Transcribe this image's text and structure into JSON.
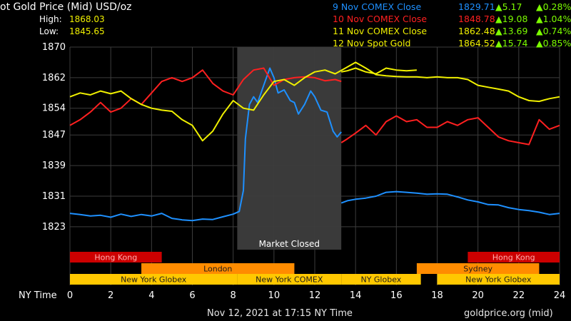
{
  "header": {
    "title": "ot Gold Price (Mid) USD/oz",
    "high_label": "High:",
    "high_value": "1868.03",
    "low_label": "Low:",
    "low_value": "1845.65"
  },
  "legend": [
    {
      "name": "9 Nov COMEX Close",
      "price": "1829.71",
      "change": "▲5.17",
      "pct": "▲0.28%",
      "color": "#1e90ff"
    },
    {
      "name": "10 Nov COMEX Close",
      "price": "1848.78",
      "change": "▲19.08",
      "pct": "▲1.04%",
      "color": "#ff2020"
    },
    {
      "name": "11 Nov COMEX Close",
      "price": "1862.48",
      "change": "▲13.69",
      "pct": "▲0.74%",
      "color": "#f0f000"
    },
    {
      "name": "12 Nov Spot Gold",
      "price": "1864.52",
      "change": "▲15.74",
      "pct": "▲0.85%",
      "color": "#f0f000"
    }
  ],
  "footer": {
    "timestamp": "Nov 12, 2021 at 17:15 NY Time",
    "source": "goldprice.org (mid)"
  },
  "colors": {
    "background": "#000000",
    "grid": "#3c3c3c",
    "closed_region": "#3a3a3a",
    "series_9nov": "#1e90ff",
    "series_10nov": "#ff2020",
    "series_11nov": "#f0f000",
    "series_12nov": "#f0f000",
    "change_up": "#7cfc00",
    "session_red": "#cc0000",
    "session_orange": "#ff8c00",
    "session_yellow": "#ffc800"
  },
  "chart_data": {
    "type": "line",
    "xlabel": "NY Time",
    "xlim": [
      0,
      24
    ],
    "ylim": [
      1817,
      1870
    ],
    "x_ticks": [
      "0",
      "2",
      "4",
      "6",
      "8",
      "10",
      "12",
      "14",
      "16",
      "18",
      "20",
      "22",
      "24"
    ],
    "y_ticks": [
      "1870",
      "1862",
      "1854",
      "1847",
      "1839",
      "1831",
      "1823"
    ],
    "y_tick_values": [
      1870,
      1862,
      1854,
      1847,
      1839,
      1831,
      1823
    ],
    "grid": true,
    "annotation": {
      "text": "Market Closed",
      "x_start": 8.2,
      "x_end": 13.3
    },
    "sessions": [
      {
        "label": "Hong Kong",
        "row": 1,
        "start": 0,
        "end": 4.5,
        "color": "#cc0000"
      },
      {
        "label": "Hong Kong",
        "row": 1,
        "start": 19.5,
        "end": 24,
        "color": "#cc0000"
      },
      {
        "label": "London",
        "row": 2,
        "start": 3.5,
        "end": 11,
        "color": "#ff8c00"
      },
      {
        "label": "Sydney",
        "row": 2,
        "start": 17,
        "end": 23,
        "color": "#ff8c00"
      },
      {
        "label": "New York Globex",
        "row": 3,
        "start": 0,
        "end": 8.2,
        "color": "#ffc800"
      },
      {
        "label": "New York COMEX",
        "row": 3,
        "start": 8.2,
        "end": 13.3,
        "color": "#ffc800"
      },
      {
        "label": "NY Globex",
        "row": 3,
        "start": 13.3,
        "end": 17.2,
        "color": "#ffc800"
      },
      {
        "label": "New York Globex",
        "row": 3,
        "start": 18,
        "end": 24,
        "color": "#ffc800"
      }
    ],
    "series": [
      {
        "name": "9 Nov COMEX Close",
        "color": "#1e90ff",
        "segments": [
          [
            [
              0,
              1826.5
            ],
            [
              0.5,
              1826.2
            ],
            [
              1,
              1825.8
            ],
            [
              1.5,
              1826.0
            ],
            [
              2,
              1825.5
            ],
            [
              2.5,
              1826.3
            ],
            [
              3,
              1825.7
            ],
            [
              3.5,
              1826.2
            ],
            [
              4,
              1825.8
            ],
            [
              4.5,
              1826.5
            ],
            [
              5,
              1825.2
            ],
            [
              5.5,
              1824.8
            ],
            [
              6,
              1824.6
            ],
            [
              6.5,
              1825.0
            ],
            [
              7,
              1824.9
            ],
            [
              7.5,
              1825.6
            ],
            [
              8,
              1826.3
            ],
            [
              8.3,
              1827.0
            ],
            [
              8.5,
              1832.5
            ],
            [
              8.6,
              1846.0
            ],
            [
              8.8,
              1855.0
            ],
            [
              9,
              1857.0
            ],
            [
              9.2,
              1855.5
            ],
            [
              9.5,
              1860.0
            ],
            [
              9.8,
              1864.5
            ],
            [
              10,
              1862.0
            ],
            [
              10.2,
              1858.0
            ],
            [
              10.5,
              1858.8
            ],
            [
              10.8,
              1856.0
            ],
            [
              11,
              1855.5
            ],
            [
              11.2,
              1852.5
            ],
            [
              11.5,
              1855.0
            ],
            [
              11.8,
              1858.5
            ],
            [
              12,
              1857.0
            ],
            [
              12.3,
              1853.5
            ],
            [
              12.6,
              1853.0
            ],
            [
              12.9,
              1848.0
            ],
            [
              13.1,
              1846.5
            ],
            [
              13.3,
              1847.8
            ]
          ],
          [
            [
              13.3,
              1829.2
            ],
            [
              13.6,
              1829.8
            ],
            [
              14,
              1830.2
            ],
            [
              14.5,
              1830.5
            ],
            [
              15,
              1831.0
            ],
            [
              15.5,
              1832.0
            ],
            [
              16,
              1832.2
            ],
            [
              16.5,
              1832.0
            ],
            [
              17,
              1831.8
            ],
            [
              17.5,
              1831.5
            ],
            [
              18,
              1831.6
            ],
            [
              18.5,
              1831.5
            ],
            [
              19,
              1830.8
            ],
            [
              19.5,
              1830.0
            ],
            [
              20,
              1829.5
            ],
            [
              20.5,
              1828.8
            ],
            [
              21,
              1828.7
            ],
            [
              21.5,
              1828.0
            ],
            [
              22,
              1827.5
            ],
            [
              22.5,
              1827.2
            ],
            [
              23,
              1826.8
            ],
            [
              23.5,
              1826.2
            ],
            [
              24,
              1826.5
            ]
          ]
        ]
      },
      {
        "name": "10 Nov COMEX Close",
        "color": "#ff2020",
        "segments": [
          [
            [
              0,
              1849.5
            ],
            [
              0.5,
              1851.0
            ],
            [
              1,
              1853.0
            ],
            [
              1.5,
              1855.5
            ],
            [
              2,
              1853.0
            ],
            [
              2.5,
              1854.0
            ],
            [
              3,
              1856.5
            ],
            [
              3.5,
              1855.0
            ],
            [
              4,
              1858.0
            ],
            [
              4.5,
              1861.0
            ],
            [
              5,
              1862.0
            ],
            [
              5.5,
              1861.0
            ],
            [
              6,
              1862.0
            ],
            [
              6.5,
              1864.0
            ],
            [
              7,
              1860.5
            ],
            [
              7.5,
              1858.5
            ],
            [
              8,
              1857.5
            ],
            [
              8.5,
              1861.5
            ],
            [
              9,
              1864.0
            ],
            [
              9.5,
              1864.5
            ],
            [
              10,
              1860.0
            ],
            [
              10.5,
              1861.5
            ],
            [
              11,
              1862.0
            ],
            [
              11.5,
              1862.2
            ],
            [
              12,
              1862.0
            ],
            [
              12.5,
              1861.2
            ],
            [
              13,
              1861.5
            ],
            [
              13.3,
              1861.0
            ]
          ],
          [
            [
              13.3,
              1845.0
            ],
            [
              13.6,
              1846.0
            ],
            [
              14,
              1847.5
            ],
            [
              14.5,
              1849.5
            ],
            [
              15,
              1847.0
            ],
            [
              15.5,
              1850.5
            ],
            [
              16,
              1852.0
            ],
            [
              16.5,
              1850.5
            ],
            [
              17,
              1851.0
            ],
            [
              17.5,
              1849.0
            ],
            [
              18,
              1849.0
            ],
            [
              18.5,
              1850.5
            ],
            [
              19,
              1849.5
            ],
            [
              19.5,
              1851.0
            ],
            [
              20,
              1851.5
            ],
            [
              20.5,
              1849.0
            ],
            [
              21,
              1846.5
            ],
            [
              21.5,
              1845.5
            ],
            [
              22,
              1845.0
            ],
            [
              22.5,
              1844.5
            ],
            [
              23,
              1851.0
            ],
            [
              23.5,
              1848.5
            ],
            [
              24,
              1849.5
            ]
          ]
        ]
      },
      {
        "name": "11 Nov COMEX Close",
        "color": "#f0f000",
        "segments": [
          [
            [
              13.3,
              1863.5
            ],
            [
              13.6,
              1863.8
            ],
            [
              14,
              1864.5
            ],
            [
              14.5,
              1863.5
            ],
            [
              15,
              1863.0
            ],
            [
              15.5,
              1864.5
            ],
            [
              16,
              1864.0
            ],
            [
              16.5,
              1863.8
            ],
            [
              17,
              1864.0
            ]
          ]
        ]
      },
      {
        "name": "12 Nov Spot Gold",
        "color": "#f0f000",
        "segments": [
          [
            [
              0,
              1857.0
            ],
            [
              0.5,
              1858.0
            ],
            [
              1,
              1857.5
            ],
            [
              1.5,
              1858.5
            ],
            [
              2,
              1857.8
            ],
            [
              2.5,
              1858.5
            ],
            [
              3,
              1856.5
            ],
            [
              3.5,
              1855.0
            ],
            [
              4,
              1854.0
            ],
            [
              4.5,
              1853.5
            ],
            [
              5,
              1853.2
            ],
            [
              5.5,
              1851.0
            ],
            [
              6,
              1849.5
            ],
            [
              6.5,
              1845.5
            ],
            [
              7,
              1848.0
            ],
            [
              7.5,
              1852.5
            ],
            [
              8,
              1856.0
            ],
            [
              8.5,
              1854.0
            ],
            [
              9,
              1853.5
            ],
            [
              9.5,
              1857.5
            ],
            [
              10,
              1861.0
            ],
            [
              10.5,
              1861.5
            ],
            [
              11,
              1860.0
            ],
            [
              11.5,
              1862.0
            ],
            [
              12,
              1863.5
            ],
            [
              12.5,
              1864.0
            ],
            [
              13,
              1863.0
            ],
            [
              13.5,
              1864.5
            ],
            [
              14,
              1866.0
            ],
            [
              14.5,
              1864.5
            ],
            [
              15,
              1862.8
            ],
            [
              15.5,
              1862.5
            ],
            [
              16,
              1862.3
            ],
            [
              16.5,
              1862.2
            ],
            [
              17,
              1862.2
            ],
            [
              17.5,
              1862.0
            ],
            [
              18,
              1862.2
            ],
            [
              18.5,
              1862.0
            ],
            [
              19,
              1862.0
            ],
            [
              19.5,
              1861.5
            ],
            [
              20,
              1860.0
            ],
            [
              20.5,
              1859.5
            ],
            [
              21,
              1859.0
            ],
            [
              21.5,
              1858.5
            ],
            [
              22,
              1857.0
            ],
            [
              22.5,
              1856.0
            ],
            [
              23,
              1855.8
            ],
            [
              23.5,
              1856.5
            ],
            [
              24,
              1857.0
            ]
          ]
        ]
      }
    ]
  }
}
